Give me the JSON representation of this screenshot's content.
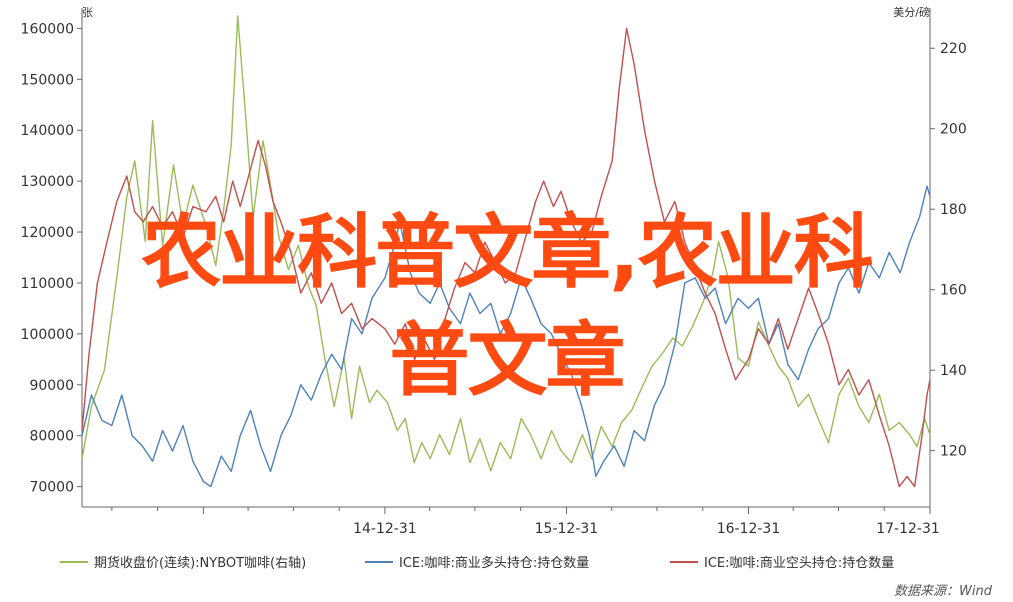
{
  "chart_data": {
    "type": "line",
    "left_axis": {
      "unit": "张",
      "ticks": [
        70000,
        80000,
        90000,
        100000,
        110000,
        120000,
        130000,
        140000,
        150000,
        160000
      ],
      "range": [
        66000,
        164000
      ]
    },
    "right_axis": {
      "unit": "美分/磅",
      "ticks": [
        120,
        140,
        160,
        180,
        200,
        220
      ],
      "range": [
        106,
        230
      ]
    },
    "x_ticks": [
      "14-12-31",
      "15-12-31",
      "16-12-31",
      "17-12-31"
    ],
    "x_range": [
      "2013-05-01",
      "2017-12-31"
    ],
    "series": [
      {
        "name": "期货收盘价(连续):NYBOT咖啡(右轴)",
        "axis": "right",
        "color": "#9bbb59",
        "points": [
          [
            "2013-05-01",
            118
          ],
          [
            "2013-05-20",
            131
          ],
          [
            "2013-06-15",
            140
          ],
          [
            "2013-07-10",
            163
          ],
          [
            "2013-07-30",
            183
          ],
          [
            "2013-08-15",
            192
          ],
          [
            "2013-09-05",
            172
          ],
          [
            "2013-09-20",
            202
          ],
          [
            "2013-10-10",
            171
          ],
          [
            "2013-11-01",
            191
          ],
          [
            "2013-11-20",
            176
          ],
          [
            "2013-12-10",
            186
          ],
          [
            "2014-01-05",
            176
          ],
          [
            "2014-01-25",
            166
          ],
          [
            "2014-02-10",
            180
          ],
          [
            "2014-02-25",
            196
          ],
          [
            "2014-03-10",
            228
          ],
          [
            "2014-03-25",
            205
          ],
          [
            "2014-04-10",
            178
          ],
          [
            "2014-04-30",
            197
          ],
          [
            "2014-05-15",
            186
          ],
          [
            "2014-06-01",
            173
          ],
          [
            "2014-06-20",
            165
          ],
          [
            "2014-07-10",
            171
          ],
          [
            "2014-07-30",
            161
          ],
          [
            "2014-08-15",
            156
          ],
          [
            "2014-09-01",
            143
          ],
          [
            "2014-09-20",
            131
          ],
          [
            "2014-10-10",
            143
          ],
          [
            "2014-10-25",
            128
          ],
          [
            "2014-11-10",
            141
          ],
          [
            "2014-11-30",
            132
          ],
          [
            "2014-12-15",
            135
          ],
          [
            "2015-01-05",
            132
          ],
          [
            "2015-01-25",
            125
          ],
          [
            "2015-02-10",
            128
          ],
          [
            "2015-02-28",
            117
          ],
          [
            "2015-03-15",
            122
          ],
          [
            "2015-04-01",
            118
          ],
          [
            "2015-04-20",
            124
          ],
          [
            "2015-05-10",
            119
          ],
          [
            "2015-06-01",
            128
          ],
          [
            "2015-06-20",
            117
          ],
          [
            "2015-07-10",
            123
          ],
          [
            "2015-08-01",
            115
          ],
          [
            "2015-08-20",
            122
          ],
          [
            "2015-09-10",
            118
          ],
          [
            "2015-10-01",
            128
          ],
          [
            "2015-10-20",
            124
          ],
          [
            "2015-11-10",
            118
          ],
          [
            "2015-12-01",
            125
          ],
          [
            "2015-12-20",
            120
          ],
          [
            "2016-01-10",
            117
          ],
          [
            "2016-02-01",
            124
          ],
          [
            "2016-02-20",
            118
          ],
          [
            "2016-03-10",
            126
          ],
          [
            "2016-04-01",
            121
          ],
          [
            "2016-04-20",
            127
          ],
          [
            "2016-05-10",
            130
          ],
          [
            "2016-06-01",
            136
          ],
          [
            "2016-06-20",
            141
          ],
          [
            "2016-07-10",
            144
          ],
          [
            "2016-08-01",
            148
          ],
          [
            "2016-08-20",
            146
          ],
          [
            "2016-09-10",
            151
          ],
          [
            "2016-10-01",
            157
          ],
          [
            "2016-10-20",
            164
          ],
          [
            "2016-11-01",
            172
          ],
          [
            "2016-11-20",
            163
          ],
          [
            "2016-12-10",
            143
          ],
          [
            "2016-12-31",
            141
          ],
          [
            "2017-01-20",
            152
          ],
          [
            "2017-02-10",
            146
          ],
          [
            "2017-03-01",
            141
          ],
          [
            "2017-03-20",
            138
          ],
          [
            "2017-04-10",
            131
          ],
          [
            "2017-05-01",
            134
          ],
          [
            "2017-05-20",
            128
          ],
          [
            "2017-06-10",
            122
          ],
          [
            "2017-07-01",
            134
          ],
          [
            "2017-07-20",
            138
          ],
          [
            "2017-08-10",
            131
          ],
          [
            "2017-08-30",
            127
          ],
          [
            "2017-09-20",
            134
          ],
          [
            "2017-10-10",
            125
          ],
          [
            "2017-10-30",
            127
          ],
          [
            "2017-11-20",
            124
          ],
          [
            "2017-12-05",
            121
          ],
          [
            "2017-12-20",
            128
          ],
          [
            "2017-12-31",
            124
          ]
        ]
      },
      {
        "name": "ICE:咖啡:商业多头持仓:持仓数量",
        "axis": "left",
        "color": "#4f81bd",
        "points": [
          [
            "2013-05-01",
            80000
          ],
          [
            "2013-05-20",
            88000
          ],
          [
            "2013-06-10",
            83000
          ],
          [
            "2013-06-30",
            82000
          ],
          [
            "2013-07-20",
            88000
          ],
          [
            "2013-08-10",
            80000
          ],
          [
            "2013-08-30",
            78000
          ],
          [
            "2013-09-20",
            75000
          ],
          [
            "2013-10-10",
            81000
          ],
          [
            "2013-10-30",
            77000
          ],
          [
            "2013-11-20",
            82000
          ],
          [
            "2013-12-10",
            75000
          ],
          [
            "2013-12-31",
            71000
          ],
          [
            "2014-01-15",
            70000
          ],
          [
            "2014-02-05",
            76000
          ],
          [
            "2014-02-25",
            73000
          ],
          [
            "2014-03-15",
            80000
          ],
          [
            "2014-04-05",
            85000
          ],
          [
            "2014-04-25",
            78000
          ],
          [
            "2014-05-15",
            73000
          ],
          [
            "2014-06-05",
            80000
          ],
          [
            "2014-06-25",
            84000
          ],
          [
            "2014-07-15",
            90000
          ],
          [
            "2014-08-05",
            87000
          ],
          [
            "2014-08-25",
            92000
          ],
          [
            "2014-09-15",
            96000
          ],
          [
            "2014-10-05",
            93000
          ],
          [
            "2014-10-25",
            103000
          ],
          [
            "2014-11-15",
            100000
          ],
          [
            "2014-12-05",
            107000
          ],
          [
            "2014-12-31",
            111000
          ],
          [
            "2015-01-15",
            116000
          ],
          [
            "2015-01-30",
            122000
          ],
          [
            "2015-02-20",
            112000
          ],
          [
            "2015-03-10",
            108000
          ],
          [
            "2015-04-01",
            106000
          ],
          [
            "2015-04-20",
            110000
          ],
          [
            "2015-05-10",
            105000
          ],
          [
            "2015-06-01",
            102000
          ],
          [
            "2015-06-20",
            108000
          ],
          [
            "2015-07-10",
            104000
          ],
          [
            "2015-08-01",
            106000
          ],
          [
            "2015-08-20",
            100000
          ],
          [
            "2015-09-10",
            104000
          ],
          [
            "2015-10-01",
            111000
          ],
          [
            "2015-10-20",
            107000
          ],
          [
            "2015-11-10",
            102000
          ],
          [
            "2015-12-01",
            100000
          ],
          [
            "2015-12-20",
            96000
          ],
          [
            "2016-01-10",
            92000
          ],
          [
            "2016-01-30",
            86000
          ],
          [
            "2016-02-15",
            80000
          ],
          [
            "2016-02-28",
            72000
          ],
          [
            "2016-03-15",
            75000
          ],
          [
            "2016-04-05",
            78000
          ],
          [
            "2016-04-25",
            74000
          ],
          [
            "2016-05-15",
            81000
          ],
          [
            "2016-06-05",
            79000
          ],
          [
            "2016-06-25",
            86000
          ],
          [
            "2016-07-15",
            90000
          ],
          [
            "2016-08-05",
            98000
          ],
          [
            "2016-08-25",
            110000
          ],
          [
            "2016-09-15",
            111000
          ],
          [
            "2016-10-05",
            107000
          ],
          [
            "2016-10-25",
            109000
          ],
          [
            "2016-11-15",
            102000
          ],
          [
            "2016-12-10",
            107000
          ],
          [
            "2016-12-31",
            105000
          ],
          [
            "2017-01-20",
            107000
          ],
          [
            "2017-02-10",
            98000
          ],
          [
            "2017-03-01",
            102000
          ],
          [
            "2017-03-20",
            94000
          ],
          [
            "2017-04-10",
            91000
          ],
          [
            "2017-05-01",
            97000
          ],
          [
            "2017-05-20",
            101000
          ],
          [
            "2017-06-10",
            103000
          ],
          [
            "2017-07-01",
            110000
          ],
          [
            "2017-07-20",
            113000
          ],
          [
            "2017-08-10",
            108000
          ],
          [
            "2017-08-30",
            114000
          ],
          [
            "2017-09-20",
            111000
          ],
          [
            "2017-10-10",
            116000
          ],
          [
            "2017-11-01",
            112000
          ],
          [
            "2017-11-20",
            118000
          ],
          [
            "2017-12-10",
            123000
          ],
          [
            "2017-12-25",
            129000
          ],
          [
            "2017-12-31",
            127000
          ]
        ]
      },
      {
        "name": "ICE:咖啡:商业空头持仓:持仓数量",
        "axis": "left",
        "color": "#c0504d",
        "points": [
          [
            "2013-05-01",
            81000
          ],
          [
            "2013-05-15",
            96000
          ],
          [
            "2013-06-01",
            110000
          ],
          [
            "2013-06-20",
            118000
          ],
          [
            "2013-07-10",
            126000
          ],
          [
            "2013-07-30",
            131000
          ],
          [
            "2013-08-15",
            124000
          ],
          [
            "2013-09-01",
            122000
          ],
          [
            "2013-09-20",
            125000
          ],
          [
            "2013-10-10",
            121000
          ],
          [
            "2013-10-30",
            124000
          ],
          [
            "2013-11-20",
            119000
          ],
          [
            "2013-12-10",
            125000
          ],
          [
            "2014-01-05",
            124000
          ],
          [
            "2014-01-25",
            127000
          ],
          [
            "2014-02-10",
            122000
          ],
          [
            "2014-02-28",
            130000
          ],
          [
            "2014-03-15",
            125000
          ],
          [
            "2014-04-01",
            131000
          ],
          [
            "2014-04-20",
            138000
          ],
          [
            "2014-05-05",
            133000
          ],
          [
            "2014-05-20",
            126000
          ],
          [
            "2014-06-05",
            122000
          ],
          [
            "2014-06-25",
            116000
          ],
          [
            "2014-07-15",
            108000
          ],
          [
            "2014-08-05",
            112000
          ],
          [
            "2014-08-25",
            106000
          ],
          [
            "2014-09-15",
            110000
          ],
          [
            "2014-10-05",
            104000
          ],
          [
            "2014-10-25",
            106000
          ],
          [
            "2014-11-15",
            101000
          ],
          [
            "2014-12-05",
            103000
          ],
          [
            "2014-12-31",
            101000
          ],
          [
            "2015-01-20",
            98000
          ],
          [
            "2015-02-10",
            102000
          ],
          [
            "2015-03-01",
            95000
          ],
          [
            "2015-03-20",
            99000
          ],
          [
            "2015-04-10",
            95000
          ],
          [
            "2015-05-01",
            103000
          ],
          [
            "2015-05-20",
            109000
          ],
          [
            "2015-06-10",
            114000
          ],
          [
            "2015-06-30",
            112000
          ],
          [
            "2015-07-20",
            118000
          ],
          [
            "2015-08-10",
            114000
          ],
          [
            "2015-08-30",
            110000
          ],
          [
            "2015-09-20",
            112000
          ],
          [
            "2015-10-10",
            119000
          ],
          [
            "2015-10-30",
            126000
          ],
          [
            "2015-11-15",
            130000
          ],
          [
            "2015-12-05",
            125000
          ],
          [
            "2015-12-20",
            128000
          ],
          [
            "2016-01-10",
            122000
          ],
          [
            "2016-01-30",
            118000
          ],
          [
            "2016-02-20",
            120000
          ],
          [
            "2016-03-10",
            127000
          ],
          [
            "2016-04-01",
            134000
          ],
          [
            "2016-04-15",
            148000
          ],
          [
            "2016-04-30",
            160000
          ],
          [
            "2016-05-15",
            153000
          ],
          [
            "2016-06-05",
            140000
          ],
          [
            "2016-06-25",
            130000
          ],
          [
            "2016-07-15",
            122000
          ],
          [
            "2016-08-05",
            126000
          ],
          [
            "2016-08-25",
            118000
          ],
          [
            "2016-09-15",
            113000
          ],
          [
            "2016-10-05",
            108000
          ],
          [
            "2016-10-25",
            104000
          ],
          [
            "2016-11-15",
            97000
          ],
          [
            "2016-12-05",
            91000
          ],
          [
            "2016-12-31",
            95000
          ],
          [
            "2017-01-20",
            101000
          ],
          [
            "2017-02-10",
            98000
          ],
          [
            "2017-03-01",
            103000
          ],
          [
            "2017-03-20",
            97000
          ],
          [
            "2017-04-10",
            103000
          ],
          [
            "2017-05-01",
            109000
          ],
          [
            "2017-05-20",
            104000
          ],
          [
            "2017-06-10",
            98000
          ],
          [
            "2017-07-01",
            90000
          ],
          [
            "2017-07-20",
            93000
          ],
          [
            "2017-08-10",
            88000
          ],
          [
            "2017-08-30",
            91000
          ],
          [
            "2017-09-20",
            84000
          ],
          [
            "2017-10-10",
            78000
          ],
          [
            "2017-10-30",
            70000
          ],
          [
            "2017-11-15",
            72000
          ],
          [
            "2017-11-30",
            70000
          ],
          [
            "2017-12-15",
            80000
          ],
          [
            "2017-12-25",
            88000
          ],
          [
            "2017-12-31",
            91000
          ]
        ]
      }
    ],
    "gridlines": false,
    "legend_position": "bottom"
  },
  "source_text": "数据来源：Wind",
  "overlay": {
    "line1": "农业科普文章,农业科",
    "line2": "普文章"
  },
  "colors": {
    "overlay": "#ff4a12",
    "axis": "#666666"
  }
}
